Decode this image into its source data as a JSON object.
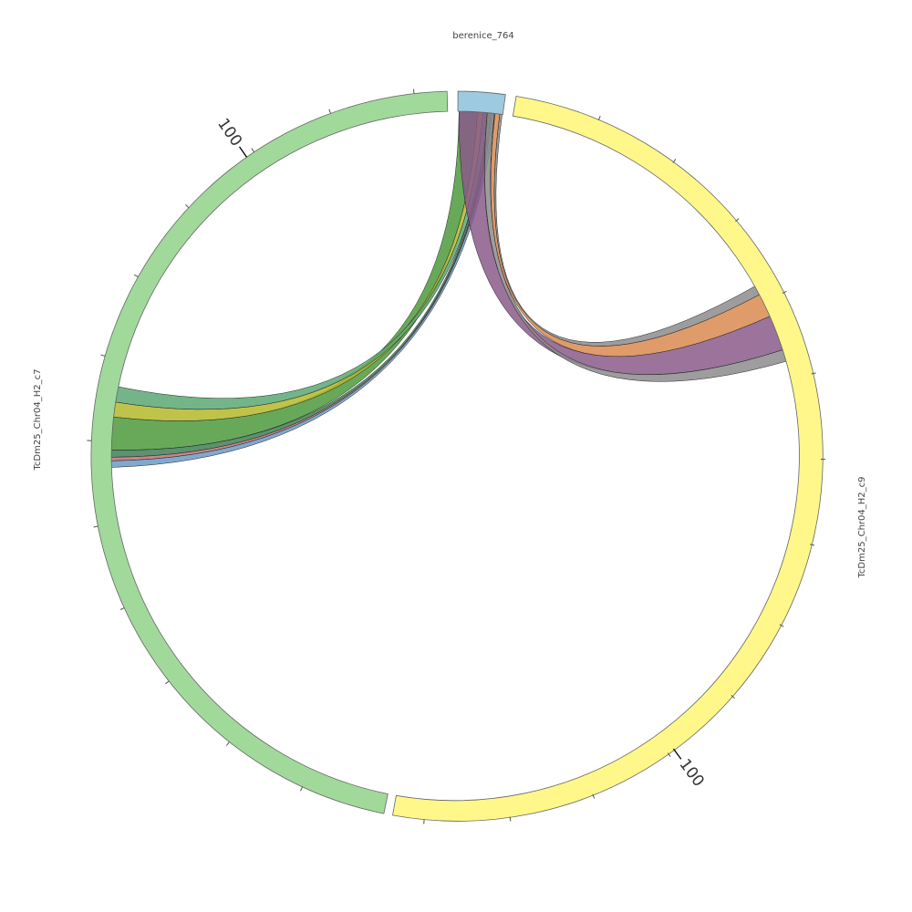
{
  "segments": [
    {
      "label": "berenice_764",
      "color": "#9ecae1"
    },
    {
      "label": "TcDm25_Chr04_H2_c9",
      "color": "#fff78a",
      "tick_label": "100"
    },
    {
      "label": "TcDm25_Chr04_H2_c7",
      "color": "#a1d99b",
      "tick_label": "100"
    }
  ]
}
